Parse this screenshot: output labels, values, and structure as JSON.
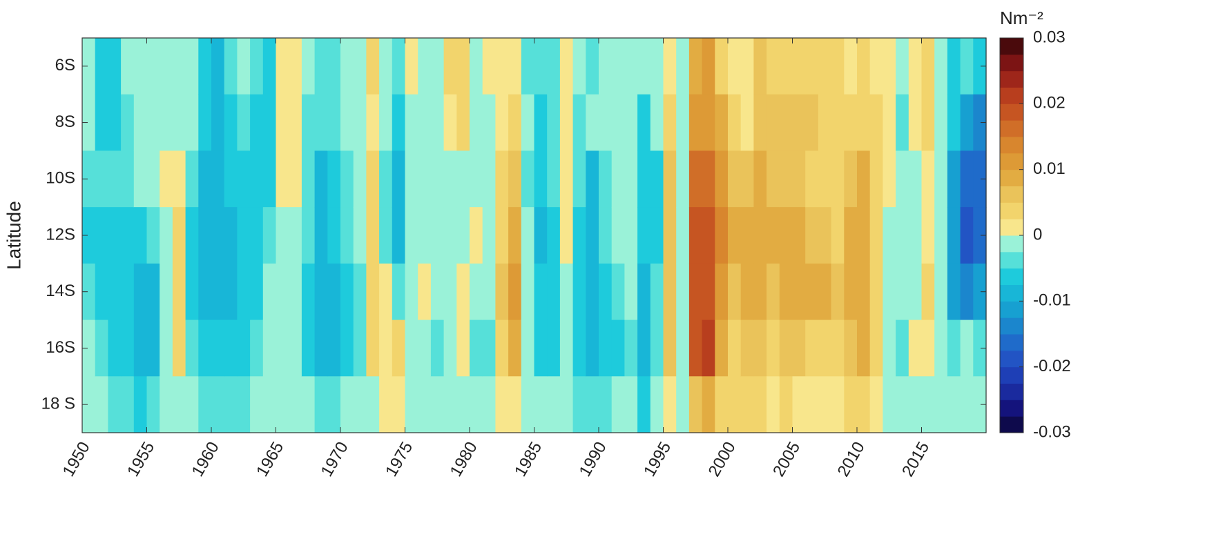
{
  "chart_data": {
    "type": "heatmap",
    "ylabel": "Latitude",
    "colorbar_label": "Nm⁻²",
    "x": [
      1950,
      1951,
      1952,
      1953,
      1954,
      1955,
      1956,
      1957,
      1958,
      1959,
      1960,
      1961,
      1962,
      1963,
      1964,
      1965,
      1966,
      1967,
      1968,
      1969,
      1970,
      1971,
      1972,
      1973,
      1974,
      1975,
      1976,
      1977,
      1978,
      1979,
      1980,
      1981,
      1982,
      1983,
      1984,
      1985,
      1986,
      1987,
      1988,
      1989,
      1990,
      1991,
      1992,
      1993,
      1994,
      1995,
      1996,
      1997,
      1998,
      1999,
      2000,
      2001,
      2002,
      2003,
      2004,
      2005,
      2006,
      2007,
      2008,
      2009,
      2010,
      2011,
      2012,
      2013,
      2014,
      2015,
      2016,
      2017,
      2018,
      2019
    ],
    "y": [
      6,
      8,
      10,
      12,
      14,
      16,
      18
    ],
    "values": [
      [
        0,
        0,
        -0.003,
        -0.005,
        -0.004,
        -0.002,
        -0.001
      ],
      [
        -0.006,
        -0.007,
        -0.004,
        -0.005,
        -0.006,
        -0.004,
        -0.002
      ],
      [
        -0.005,
        -0.006,
        -0.003,
        -0.005,
        -0.006,
        -0.005,
        -0.003
      ],
      [
        -0.002,
        -0.003,
        -0.003,
        -0.007,
        -0.006,
        -0.006,
        -0.003
      ],
      [
        -0.001,
        -0.002,
        -0.002,
        -0.005,
        -0.008,
        -0.009,
        -0.005
      ],
      [
        0,
        -0.001,
        -0.002,
        -0.004,
        -0.008,
        -0.008,
        -0.004
      ],
      [
        0,
        0,
        0.001,
        -0.001,
        -0.002,
        -0.002,
        -0.001
      ],
      [
        0,
        0,
        0.002,
        0.003,
        0.003,
        0.003,
        0
      ],
      [
        -0.001,
        -0.002,
        -0.004,
        -0.005,
        -0.005,
        -0.004,
        -0.002
      ],
      [
        -0.007,
        -0.007,
        -0.009,
        -0.009,
        -0.008,
        -0.006,
        -0.003
      ],
      [
        -0.009,
        -0.008,
        -0.009,
        -0.008,
        -0.008,
        -0.006,
        -0.003
      ],
      [
        -0.004,
        -0.005,
        -0.007,
        -0.008,
        -0.008,
        -0.007,
        -0.003
      ],
      [
        -0.002,
        -0.003,
        -0.005,
        -0.006,
        -0.007,
        -0.006,
        -0.003
      ],
      [
        -0.004,
        -0.005,
        -0.006,
        -0.005,
        -0.005,
        -0.003,
        -0.001
      ],
      [
        -0.006,
        -0.005,
        -0.006,
        -0.004,
        -0.002,
        -0.001,
        0
      ],
      [
        0.002,
        0.002,
        0.001,
        0,
        -0.001,
        -0.001,
        0
      ],
      [
        0.001,
        0.002,
        0.001,
        -0.001,
        -0.001,
        0,
        0
      ],
      [
        -0.002,
        -0.003,
        -0.004,
        -0.004,
        -0.005,
        -0.005,
        -0.002
      ],
      [
        -0.004,
        -0.004,
        -0.008,
        -0.009,
        -0.009,
        -0.009,
        -0.004
      ],
      [
        -0.003,
        -0.003,
        -0.005,
        -0.007,
        -0.008,
        -0.008,
        -0.004
      ],
      [
        -0.001,
        -0.002,
        -0.003,
        -0.004,
        -0.006,
        -0.007,
        -0.002
      ],
      [
        0,
        -0.001,
        -0.001,
        -0.002,
        -0.003,
        -0.004,
        -0.001
      ],
      [
        0.004,
        0.002,
        0.003,
        0.004,
        0.004,
        0.003,
        0
      ],
      [
        0,
        -0.001,
        -0.003,
        -0.003,
        0.001,
        0.002,
        0.001
      ],
      [
        -0.003,
        -0.006,
        -0.009,
        -0.008,
        -0.003,
        0.004,
        0.002
      ],
      [
        0.001,
        0,
        0,
        0,
        0,
        0,
        0
      ],
      [
        0,
        0,
        0,
        0,
        0.002,
        0,
        0
      ],
      [
        0,
        -0.001,
        0,
        0,
        0,
        -0.003,
        0
      ],
      [
        0.003,
        0.001,
        0,
        0,
        0,
        0,
        0
      ],
      [
        0.004,
        0.003,
        0,
        0,
        0.001,
        0.002,
        0
      ],
      [
        0,
        0,
        0,
        0.002,
        0,
        -0.003,
        0
      ],
      [
        0.001,
        0,
        0,
        0,
        0,
        -0.004,
        0
      ],
      [
        0.002,
        0.002,
        0.003,
        0.005,
        0.006,
        0.005,
        0.001
      ],
      [
        0.001,
        0.003,
        0.007,
        0.009,
        0.011,
        0.009,
        0.002
      ],
      [
        -0.003,
        -0.002,
        -0.003,
        -0.002,
        -0.002,
        -0.001,
        0
      ],
      [
        -0.004,
        -0.005,
        -0.007,
        -0.008,
        -0.007,
        -0.006,
        -0.002
      ],
      [
        -0.003,
        -0.003,
        -0.004,
        -0.006,
        -0.006,
        -0.005,
        -0.002
      ],
      [
        0.002,
        0.002,
        0.001,
        0.002,
        -0.001,
        -0.002,
        0
      ],
      [
        -0.002,
        -0.003,
        -0.004,
        -0.006,
        -0.007,
        -0.007,
        -0.003
      ],
      [
        -0.004,
        -0.002,
        -0.008,
        -0.008,
        -0.009,
        -0.009,
        -0.004
      ],
      [
        -0.001,
        -0.001,
        -0.003,
        -0.004,
        -0.006,
        -0.007,
        -0.003
      ],
      [
        0,
        0,
        -0.001,
        -0.002,
        -0.003,
        -0.005,
        -0.002
      ],
      [
        -0.001,
        -0.001,
        -0.001,
        0,
        -0.002,
        -0.003,
        -0.001
      ],
      [
        -0.002,
        -0.006,
        -0.007,
        -0.007,
        -0.008,
        -0.009,
        -0.006
      ],
      [
        0,
        -0.002,
        -0.005,
        -0.005,
        -0.004,
        -0.003,
        -0.002
      ],
      [
        0.002,
        0.004,
        0.006,
        0.007,
        0.007,
        0.006,
        0.002
      ],
      [
        0,
        0,
        0,
        0,
        0,
        0,
        0
      ],
      [
        0.008,
        0.012,
        0.016,
        0.018,
        0.019,
        0.018,
        0.007
      ],
      [
        0.012,
        0.012,
        0.016,
        0.018,
        0.02,
        0.022,
        0.008
      ],
      [
        0.003,
        0.008,
        0.011,
        0.013,
        0.012,
        0.009,
        0.005
      ],
      [
        0.002,
        0.004,
        0.007,
        0.009,
        0.007,
        0.005,
        0.004
      ],
      [
        0.002,
        0.002,
        0.006,
        0.009,
        0.008,
        0.006,
        0.003
      ],
      [
        0.006,
        0.006,
        0.008,
        0.01,
        0.008,
        0.006,
        0.003
      ],
      [
        0.005,
        0.007,
        0.007,
        0.008,
        0.007,
        0.004,
        0.002
      ],
      [
        0.004,
        0.006,
        0.006,
        0.009,
        0.008,
        0.006,
        0.003
      ],
      [
        0.005,
        0.006,
        0.006,
        0.01,
        0.009,
        0.006,
        0.002
      ],
      [
        0.004,
        0.006,
        0.005,
        0.007,
        0.008,
        0.005,
        0.001
      ],
      [
        0.003,
        0.004,
        0.004,
        0.006,
        0.009,
        0.005,
        0.002
      ],
      [
        0.003,
        0.003,
        0.004,
        0.005,
        0.006,
        0.004,
        0.002
      ],
      [
        0.002,
        0.004,
        0.006,
        0.008,
        0.008,
        0.006,
        0.003
      ],
      [
        0.004,
        0.005,
        0.009,
        0.01,
        0.01,
        0.008,
        0.003
      ],
      [
        0.002,
        0.003,
        0.004,
        0.004,
        0.004,
        0.003,
        0.001
      ],
      [
        0.002,
        0.002,
        0.001,
        0,
        0,
        0,
        0
      ],
      [
        0,
        -0.003,
        -0.002,
        -0.002,
        -0.002,
        -0.003,
        0
      ],
      [
        0.002,
        0.001,
        0,
        0,
        0,
        0.002,
        0
      ],
      [
        0.004,
        0.003,
        0.002,
        0.002,
        0.003,
        0.002,
        0
      ],
      [
        0,
        0,
        0,
        -0.001,
        -0.001,
        0,
        0
      ],
      [
        -0.005,
        -0.006,
        -0.01,
        -0.012,
        -0.01,
        -0.003,
        0
      ],
      [
        -0.004,
        -0.012,
        -0.017,
        -0.018,
        -0.014,
        -0.002,
        0
      ],
      [
        -0.005,
        -0.013,
        -0.017,
        -0.017,
        -0.012,
        -0.003,
        0
      ]
    ],
    "xlim": [
      1950,
      2020
    ],
    "xticks": [
      1950,
      1955,
      1960,
      1965,
      1970,
      1975,
      1980,
      1985,
      1990,
      1995,
      2000,
      2005,
      2010,
      2015
    ],
    "ylim": [
      19,
      5
    ],
    "yticks": [
      {
        "value": 6,
        "label": "6S"
      },
      {
        "value": 8,
        "label": "8S"
      },
      {
        "value": 10,
        "label": "10S"
      },
      {
        "value": 12,
        "label": "12S"
      },
      {
        "value": 14,
        "label": "14S"
      },
      {
        "value": 16,
        "label": "16S"
      },
      {
        "value": 18,
        "label": "18 S"
      }
    ],
    "clim": [
      -0.03,
      0.03
    ],
    "cticks": [
      -0.03,
      -0.02,
      -0.01,
      0,
      0.01,
      0.02,
      0.03
    ],
    "colors": [
      "#0e0a4c",
      "#14137c",
      "#1a2a9e",
      "#1e3fb6",
      "#2254c4",
      "#1f6bca",
      "#1b86cd",
      "#17a0d1",
      "#18b6d7",
      "#1ecbdc",
      "#56e0d9",
      "#9af2d8",
      "#f8e68c",
      "#f2d46c",
      "#eac35a",
      "#e2ac42",
      "#dd9a36",
      "#d8862e",
      "#d06e28",
      "#c65522",
      "#b83e1e",
      "#9e261a",
      "#7c1414",
      "#4a0a0c"
    ]
  }
}
